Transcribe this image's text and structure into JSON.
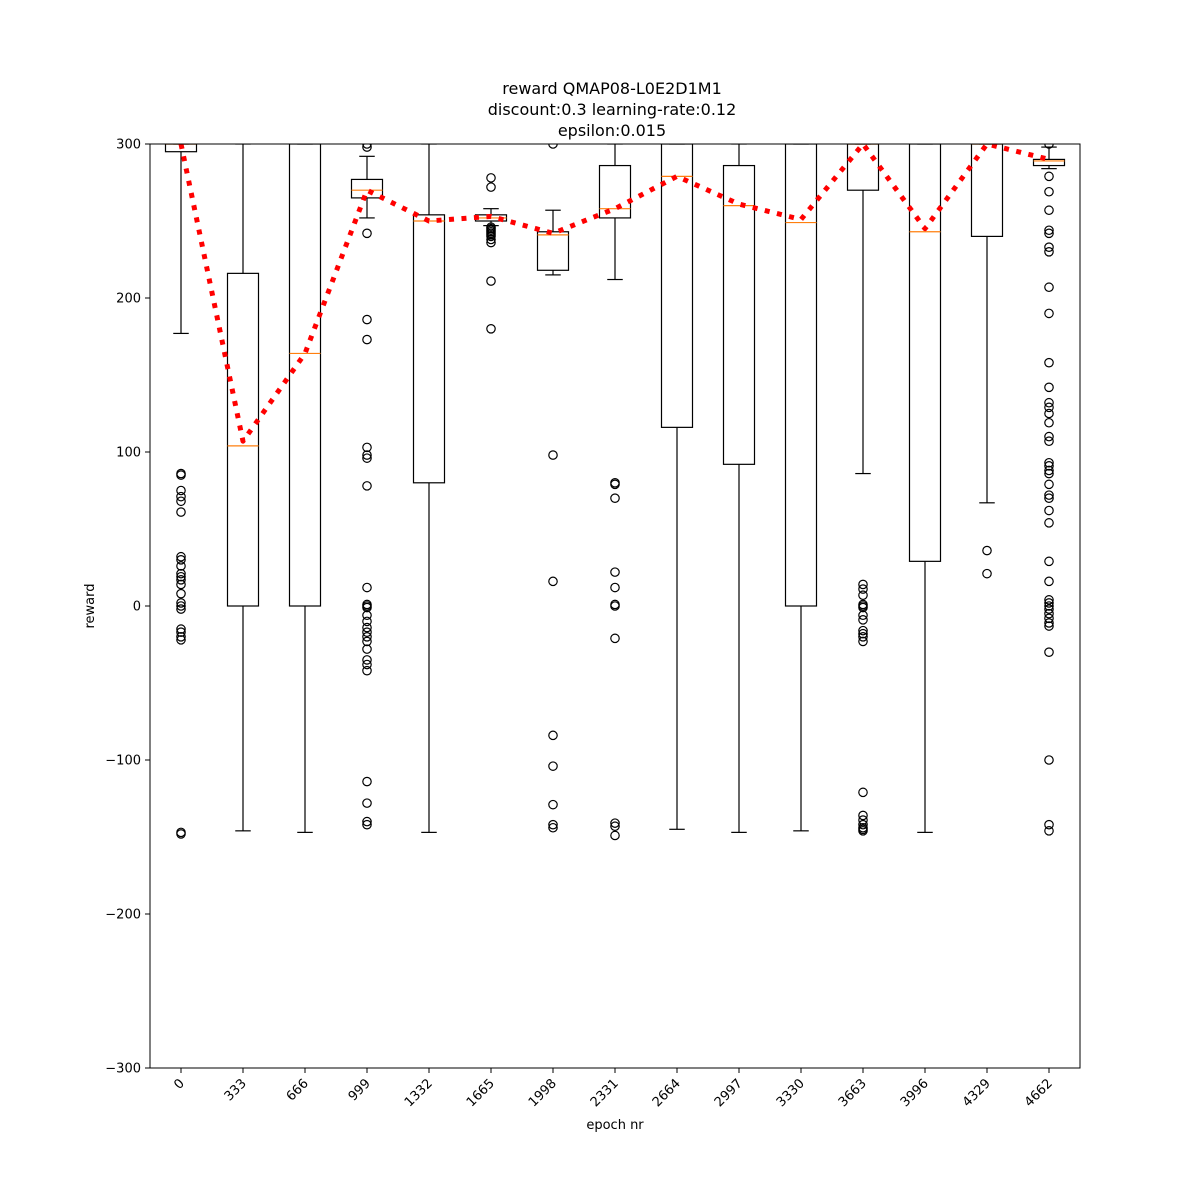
{
  "chart_data": {
    "type": "box",
    "title": [
      "reward QMAP08-L0E2D1M1",
      "discount:0.3 learning-rate:0.12",
      "epsilon:0.015"
    ],
    "xlabel": "epoch nr",
    "ylabel": "reward",
    "ylim": [
      -300,
      300
    ],
    "yticks": [
      300,
      200,
      100,
      0,
      -100,
      -200,
      -300
    ],
    "ytick_labels": [
      "300",
      "200",
      "100",
      "0",
      "−100",
      "−200",
      "−300"
    ],
    "grid": false,
    "categories": [
      "0",
      "333",
      "666",
      "999",
      "1332",
      "1665",
      "1998",
      "2331",
      "2664",
      "2997",
      "3330",
      "3663",
      "3996",
      "4329",
      "4662"
    ],
    "boxes": [
      {
        "whislo": 177,
        "q1": 295,
        "med": 300,
        "q3": 300,
        "whishi": 300,
        "mean": 300,
        "fliers": [
          86,
          85,
          75,
          71,
          68,
          61,
          32,
          30,
          26,
          21,
          19,
          17,
          14,
          8,
          2,
          0,
          -2,
          -15,
          -17,
          -20,
          -22,
          -147,
          -148
        ]
      },
      {
        "whislo": -146,
        "q1": 0,
        "med": 104,
        "q3": 216,
        "whishi": 300,
        "mean": 107,
        "fliers": []
      },
      {
        "whislo": -147,
        "q1": 0,
        "med": 164,
        "q3": 300,
        "whishi": 300,
        "mean": 164,
        "fliers": []
      },
      {
        "whislo": 252,
        "q1": 265,
        "med": 270,
        "q3": 277,
        "whishi": 292,
        "mean": 270,
        "fliers": [
          300,
          298,
          242,
          186,
          173,
          103,
          98,
          96,
          78,
          12,
          1,
          0,
          -1,
          -6,
          -10,
          -14,
          -17,
          -20,
          -23,
          -28,
          -35,
          -38,
          -42,
          -114,
          -128,
          -140,
          -142
        ]
      },
      {
        "whislo": -147,
        "q1": 80,
        "med": 250,
        "q3": 254,
        "whishi": 300,
        "mean": 250,
        "fliers": []
      },
      {
        "whislo": 247,
        "q1": 250,
        "med": 252,
        "q3": 254,
        "whishi": 258,
        "mean": 253,
        "fliers": [
          278,
          272,
          246,
          245,
          244,
          243,
          242,
          241,
          240,
          238,
          236,
          211,
          180
        ]
      },
      {
        "whislo": 215,
        "q1": 218,
        "med": 241,
        "q3": 243,
        "whishi": 257,
        "mean": 242,
        "fliers": [
          300,
          98,
          16,
          -84,
          -104,
          -129,
          -142,
          -144
        ]
      },
      {
        "whislo": 212,
        "q1": 252,
        "med": 258,
        "q3": 286,
        "whishi": 300,
        "mean": 258,
        "fliers": [
          80,
          79,
          70,
          22,
          12,
          1,
          0,
          -21,
          -141,
          -143,
          -149
        ]
      },
      {
        "whislo": -145,
        "q1": 116,
        "med": 279,
        "q3": 300,
        "whishi": 300,
        "mean": 279,
        "fliers": []
      },
      {
        "whislo": -147,
        "q1": 92,
        "med": 260,
        "q3": 286,
        "whishi": 300,
        "mean": 261,
        "fliers": []
      },
      {
        "whislo": -146,
        "q1": 0,
        "med": 249,
        "q3": 300,
        "whishi": 300,
        "mean": 251,
        "fliers": []
      },
      {
        "whislo": 86,
        "q1": 270,
        "med": 300,
        "q3": 300,
        "whishi": 300,
        "mean": 300,
        "fliers": [
          14,
          11,
          7,
          1,
          0,
          -1,
          -6,
          -9,
          -16,
          -18,
          -20,
          -23,
          -121,
          -136,
          -139,
          -142,
          -144,
          -145,
          -146
        ]
      },
      {
        "whislo": -147,
        "q1": 29,
        "med": 243,
        "q3": 300,
        "whishi": 300,
        "mean": 245,
        "fliers": []
      },
      {
        "whislo": 67,
        "q1": 240,
        "med": 300,
        "q3": 300,
        "whishi": 300,
        "mean": 300,
        "fliers": [
          36,
          21
        ]
      },
      {
        "whislo": 284,
        "q1": 286,
        "med": 289,
        "q3": 290,
        "whishi": 298,
        "mean": 290,
        "fliers": [
          300,
          279,
          269,
          257,
          244,
          242,
          233,
          230,
          207,
          190,
          158,
          142,
          132,
          129,
          125,
          119,
          110,
          107,
          93,
          91,
          88,
          86,
          79,
          72,
          70,
          62,
          54,
          29,
          16,
          4,
          2,
          0,
          -2,
          -5,
          -8,
          -11,
          -13,
          -30,
          -100,
          -142,
          -146
        ]
      }
    ],
    "mean_line": {
      "style": "dotted",
      "color": "#ff0000"
    },
    "colors": {
      "box": "#000000",
      "median": "#ff7f0e",
      "mean_line": "#ff0000",
      "flier": "#000000"
    }
  }
}
